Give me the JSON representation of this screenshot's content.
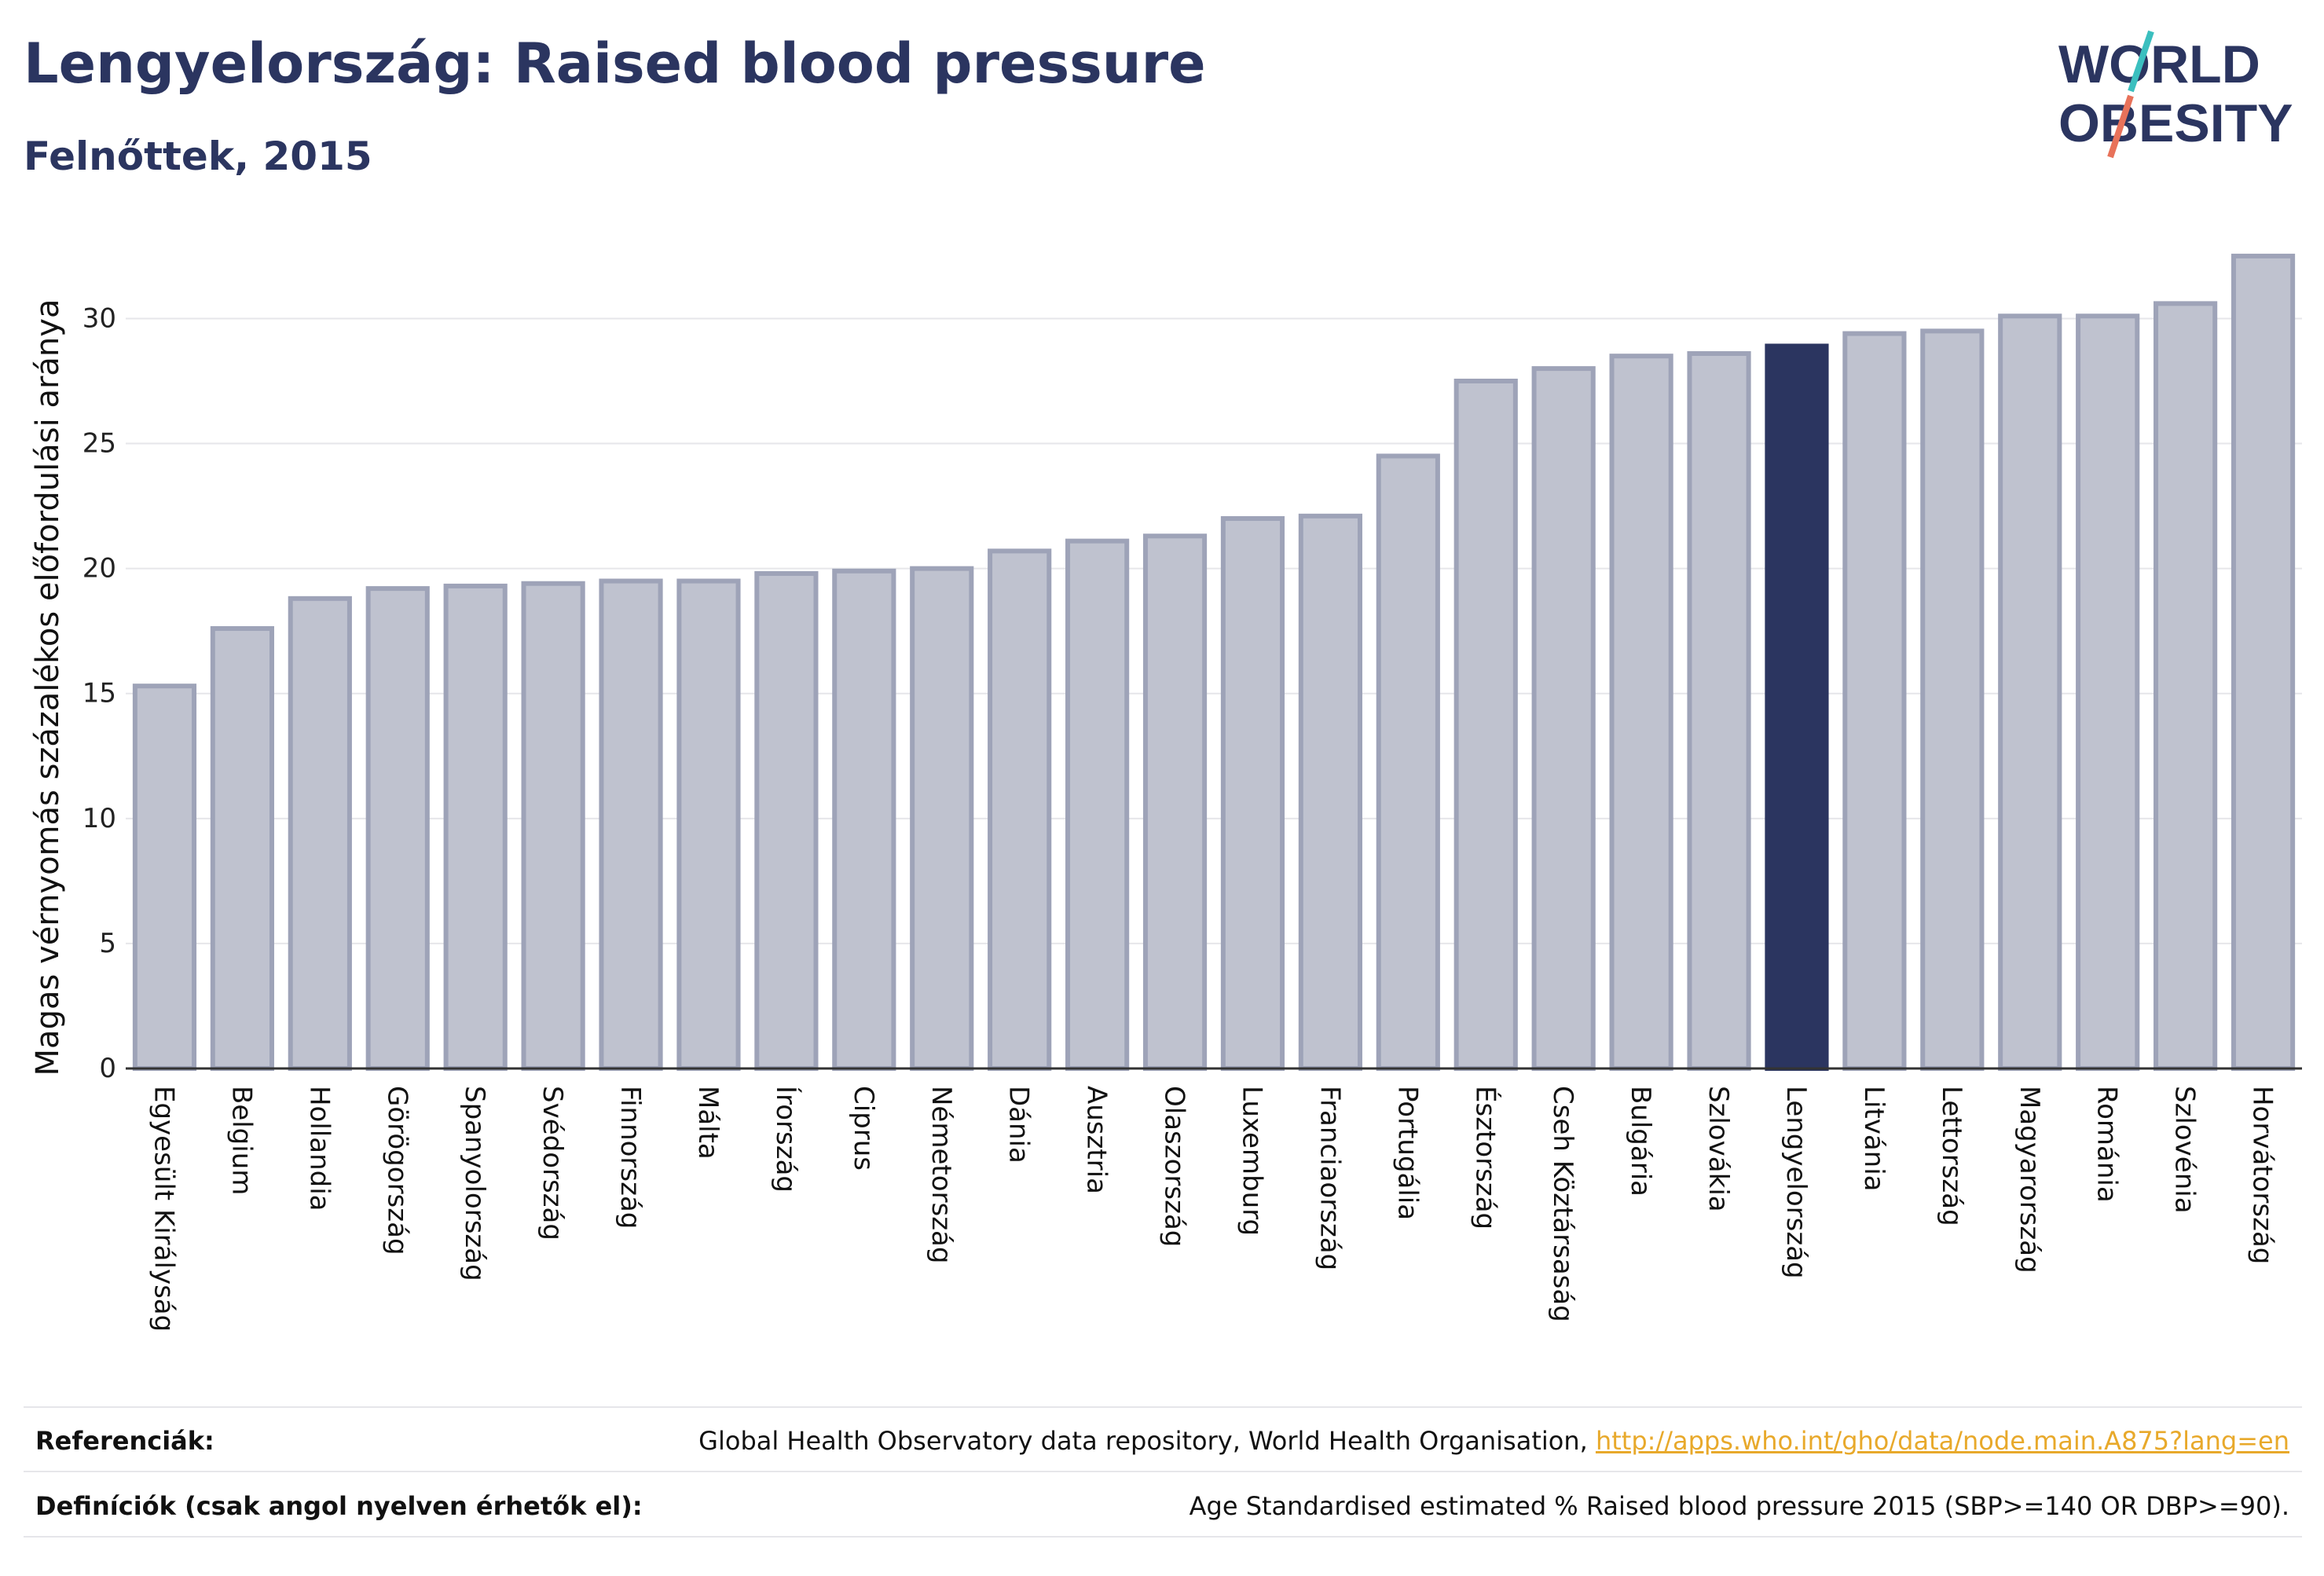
{
  "header": {
    "title": "Lengyelország: Raised blood pressure",
    "subtitle": "Felnőttek, 2015"
  },
  "logo": {
    "line1": "WORLD",
    "line2": "OBESITY",
    "text_color": "#2b3560",
    "slash_colors": [
      "#3bbfbf",
      "#e8725a"
    ]
  },
  "colors": {
    "bar_default_fill": "#bfc2cf",
    "bar_default_stroke": "#9ea3b8",
    "bar_highlight": "#2b3560",
    "grid": "#e6e6ea",
    "axis": "#333333"
  },
  "chart_data": {
    "type": "bar",
    "ylabel": "Magas vérnyomás százalékos előfordulási aránya",
    "ylim": [
      0,
      33
    ],
    "yticks": [
      0,
      5,
      10,
      15,
      20,
      25,
      30
    ],
    "grid": true,
    "highlight": "Lengyelország",
    "categories": [
      "Egyesült Királyság",
      "Belgium",
      "Hollandia",
      "Görögország",
      "Spanyolország",
      "Svédország",
      "Finnország",
      "Málta",
      "Írország",
      "Ciprus",
      "Németország",
      "Dánia",
      "Ausztria",
      "Olaszország",
      "Luxemburg",
      "Franciaország",
      "Portugália",
      "Észtország",
      "Cseh Köztársaság",
      "Bulgária",
      "Szlovákia",
      "Lengyelország",
      "Litvánia",
      "Lettország",
      "Magyarország",
      "Románia",
      "Szlovénia",
      "Horvátország"
    ],
    "values": [
      15.3,
      17.6,
      18.8,
      19.2,
      19.3,
      19.4,
      19.5,
      19.5,
      19.8,
      19.9,
      20.0,
      20.7,
      21.1,
      21.3,
      22.0,
      22.1,
      24.5,
      27.5,
      28.0,
      28.5,
      28.6,
      28.9,
      29.4,
      29.5,
      30.1,
      30.1,
      30.6,
      32.5
    ]
  },
  "footer": {
    "references_label": "Referenciák:",
    "references_text": "Global Health Observatory data repository, World Health Organisation, ",
    "references_link": "http://apps.who.int/gho/data/node.main.A875?lang=en",
    "definitions_label": "Definíciók (csak angol nyelven érhetők el):",
    "definitions_text": "Age Standardised estimated % Raised blood pressure 2015 (SBP>=140 OR DBP>=90)."
  }
}
